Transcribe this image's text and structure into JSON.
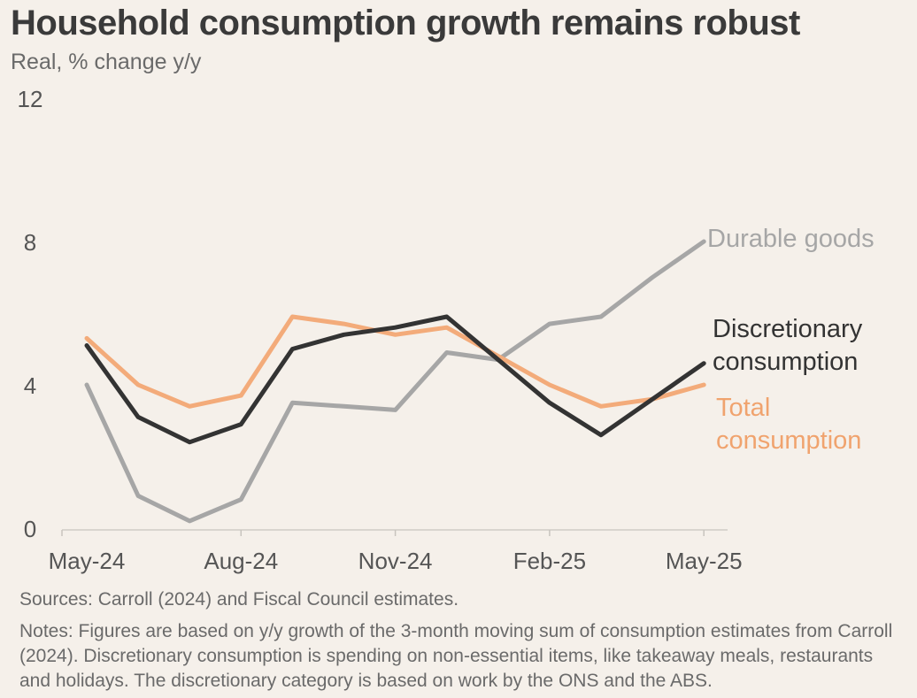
{
  "title": "Household consumption growth remains robust",
  "subtitle": "Real, % change y/y",
  "chart_data": {
    "type": "line",
    "title": "Household consumption growth remains robust",
    "ylabel": "Real, % change y/y",
    "ylim": [
      0,
      12
    ],
    "yticks": [
      0,
      4,
      8,
      12
    ],
    "xtick_labels": [
      "May-24",
      "Aug-24",
      "Nov-24",
      "Feb-25",
      "May-25"
    ],
    "x": [
      "May-24",
      "Jun-24",
      "Jul-24",
      "Aug-24",
      "Sep-24",
      "Oct-24",
      "Nov-24",
      "Dec-24",
      "Jan-25",
      "Feb-25",
      "Mar-25",
      "Apr-25",
      "May-25"
    ],
    "grid": false,
    "series": [
      {
        "name": "Durable goods",
        "label_lines": [
          "Durable goods"
        ],
        "color": "#a6a6a6",
        "values": [
          4.0,
          0.9,
          0.2,
          0.8,
          3.5,
          3.4,
          3.3,
          4.9,
          4.7,
          5.7,
          5.9,
          7.0,
          8.0
        ]
      },
      {
        "name": "Discretionary consumption",
        "label_lines": [
          "Discretionary",
          "consumption"
        ],
        "color": "#333333",
        "values": [
          5.1,
          3.1,
          2.4,
          2.9,
          5.0,
          5.4,
          5.6,
          5.9,
          4.7,
          3.5,
          2.6,
          3.6,
          4.6
        ]
      },
      {
        "name": "Total consumption",
        "label_lines": [
          "Total",
          "consumption"
        ],
        "color": "#f3ab7a",
        "label_color": "#f0a36e",
        "values": [
          5.3,
          4.0,
          3.4,
          3.7,
          5.9,
          5.7,
          5.4,
          5.6,
          4.8,
          4.0,
          3.4,
          3.6,
          4.0
        ]
      }
    ]
  },
  "footer": {
    "sources": "Sources: Carroll (2024) and Fiscal Council estimates.",
    "notes": "Notes: Figures are based on y/y growth of the 3-month moving sum of consumption estimates from Carroll (2024). Discretionary consumption is spending on non-essential items, like takeaway meals, restaurants and holidays. The discretionary category is based on work by the ONS and the ABS."
  }
}
